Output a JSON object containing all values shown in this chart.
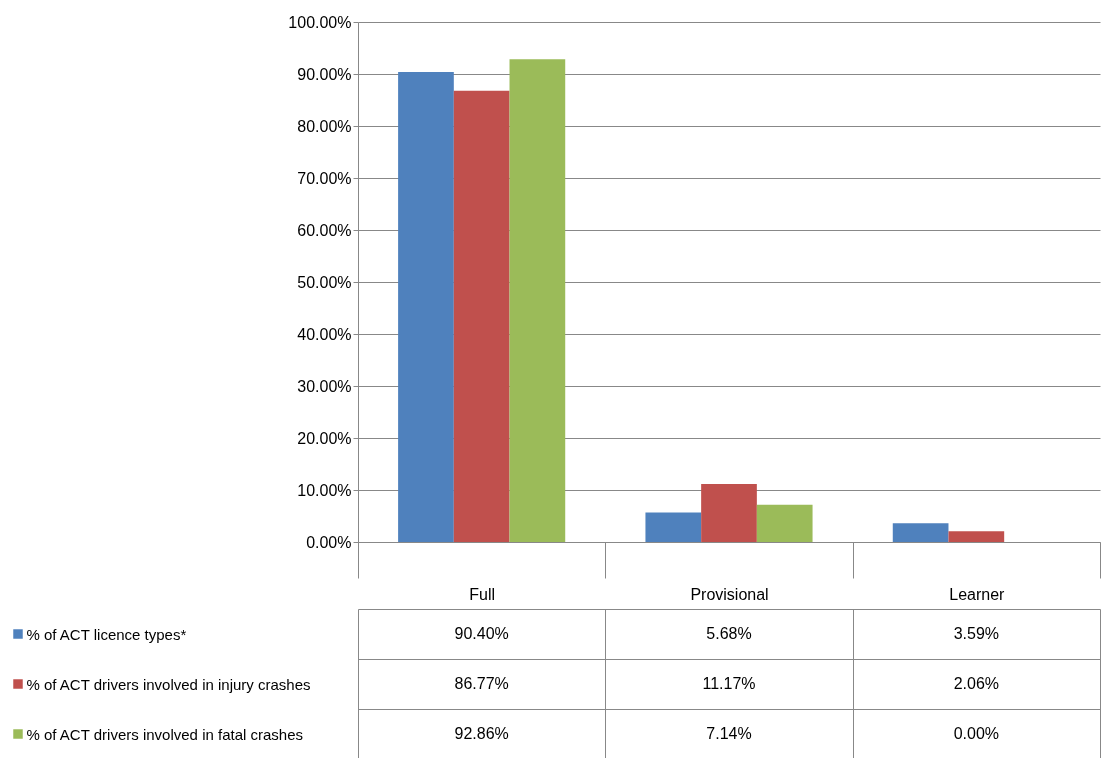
{
  "chart_data": {
    "type": "bar",
    "categories": [
      "Full",
      "Provisional",
      "Learner"
    ],
    "series": [
      {
        "name": "% of ACT licence types*",
        "color": "#4f81bd",
        "values": [
          90.4,
          5.68,
          3.59
        ],
        "value_labels": [
          "90.40%",
          "5.68%",
          "3.59%"
        ]
      },
      {
        "name": "% of ACT drivers involved in injury crashes",
        "color": "#c0504d",
        "values": [
          86.77,
          11.17,
          2.06
        ],
        "value_labels": [
          "86.77%",
          "11.17%",
          "2.06%"
        ]
      },
      {
        "name": "% of ACT drivers involved in fatal crashes",
        "color": "#9bbb59",
        "values": [
          92.86,
          7.14,
          0.0
        ],
        "value_labels": [
          "92.86%",
          "7.14%",
          "0.00%"
        ]
      }
    ],
    "ylim": [
      0,
      100
    ],
    "yticks": [
      {
        "value": 0,
        "label": "0.00%"
      },
      {
        "value": 10,
        "label": "10.00%"
      },
      {
        "value": 20,
        "label": "20.00%"
      },
      {
        "value": 30,
        "label": "30.00%"
      },
      {
        "value": 40,
        "label": "40.00%"
      },
      {
        "value": 50,
        "label": "50.00%"
      },
      {
        "value": 60,
        "label": "60.00%"
      },
      {
        "value": 70,
        "label": "70.00%"
      },
      {
        "value": 80,
        "label": "80.00%"
      },
      {
        "value": 90,
        "label": "90.00%"
      },
      {
        "value": 100,
        "label": "100.00%"
      }
    ],
    "grid": "y",
    "legend": "bottom"
  }
}
